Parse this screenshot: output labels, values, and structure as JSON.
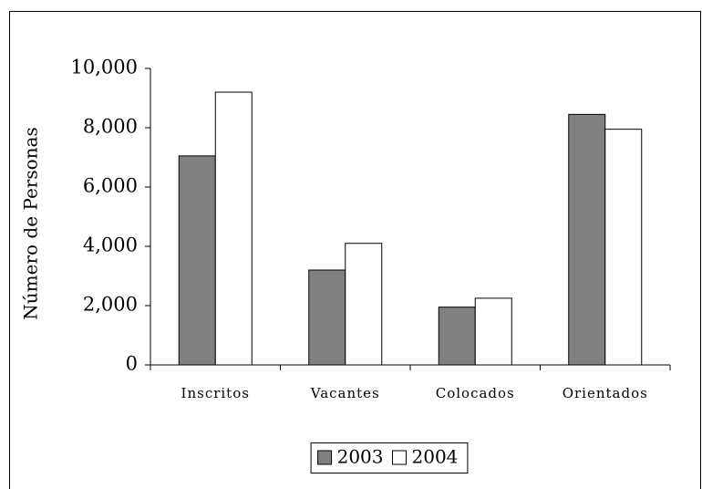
{
  "chart_data": {
    "type": "bar",
    "y_label": "Número de Personas",
    "categories": [
      "Inscritos",
      "Vacantes",
      "Colocados",
      "Orientados"
    ],
    "series": [
      {
        "name": "2003",
        "color": "#808080",
        "values": [
          7050,
          3200,
          1950,
          8450
        ]
      },
      {
        "name": "2004",
        "color": "#ffffff",
        "values": [
          9200,
          4100,
          2250,
          7950
        ]
      }
    ],
    "ylim": [
      0,
      10000
    ],
    "yticks": [
      {
        "value": 0,
        "label": "0"
      },
      {
        "value": 2000,
        "label": "2,000"
      },
      {
        "value": 4000,
        "label": "4,000"
      },
      {
        "value": 6000,
        "label": "6,000"
      },
      {
        "value": 8000,
        "label": "8,000"
      },
      {
        "value": 10000,
        "label": "10,000"
      }
    ],
    "legend": "bottom"
  }
}
